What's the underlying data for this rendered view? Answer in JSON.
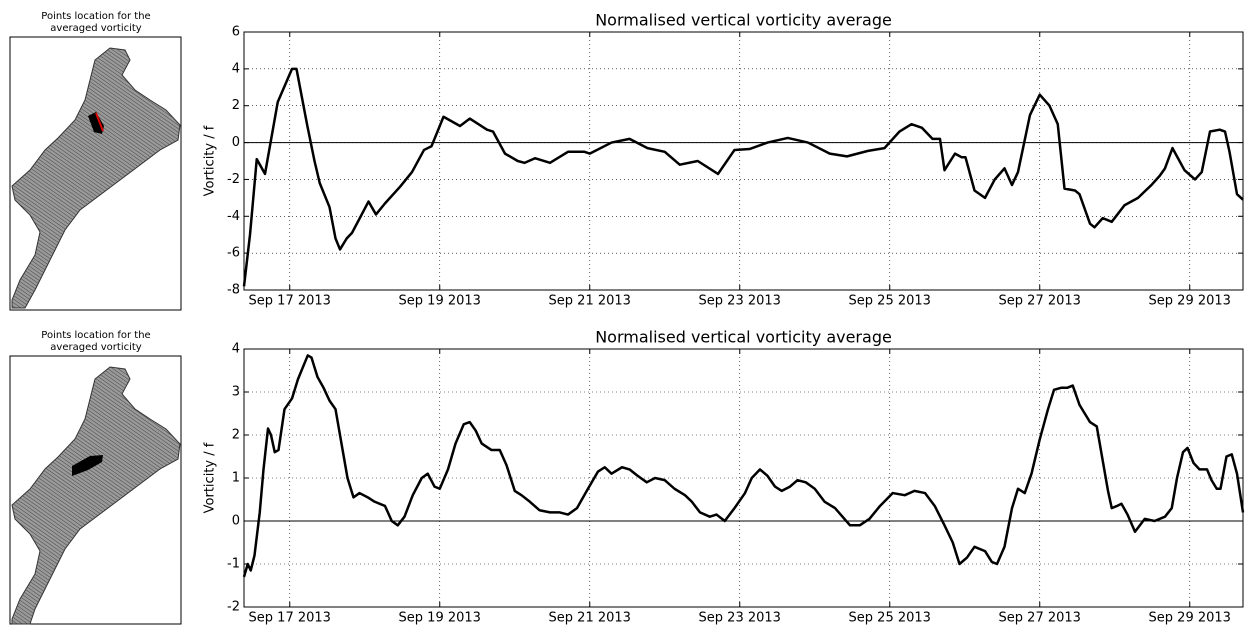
{
  "map_panels": [
    {
      "title": [
        "Points location for the",
        "averaged vorticity"
      ]
    },
    {
      "title": [
        "Points location for the",
        "averaged vorticity"
      ]
    }
  ],
  "chart_data": [
    {
      "type": "line",
      "title": "Normalised vertical vorticity average",
      "y_label": "Vorticity / f",
      "xlim": [
        16.39,
        29.71
      ],
      "ylim": [
        -8,
        6
      ],
      "yticks": [
        -8,
        -6,
        -4,
        -2,
        0,
        2,
        4,
        6
      ],
      "xticks": [
        {
          "value": 17,
          "label": "Sep 17 2013"
        },
        {
          "value": 19,
          "label": "Sep 19 2013"
        },
        {
          "value": 21,
          "label": "Sep 21 2013"
        },
        {
          "value": 23,
          "label": "Sep 23 2013"
        },
        {
          "value": 25,
          "label": "Sep 25 2013"
        },
        {
          "value": 27,
          "label": "Sep 27 2013"
        },
        {
          "value": 29,
          "label": "Sep 29 2013"
        }
      ],
      "grid": true,
      "reference_line": 0,
      "x": [
        16.39,
        16.47,
        16.56,
        16.67,
        16.84,
        17.03,
        17.09,
        17.23,
        17.33,
        17.4,
        17.53,
        17.61,
        17.67,
        17.76,
        17.83,
        18.05,
        18.15,
        18.27,
        18.47,
        18.63,
        18.79,
        18.89,
        19.05,
        19.27,
        19.4,
        19.63,
        19.71,
        19.87,
        20.04,
        20.13,
        20.27,
        20.47,
        20.71,
        20.93,
        21.0,
        21.29,
        21.53,
        21.77,
        22.0,
        22.2,
        22.44,
        22.71,
        22.93,
        23.13,
        23.37,
        23.64,
        23.91,
        24.2,
        24.43,
        24.71,
        24.93,
        25.13,
        25.29,
        25.43,
        25.57,
        25.67,
        25.73,
        25.87,
        25.96,
        26.01,
        26.13,
        26.27,
        26.4,
        26.53,
        26.63,
        26.71,
        26.87,
        27.0,
        27.13,
        27.24,
        27.33,
        27.47,
        27.53,
        27.67,
        27.73,
        27.84,
        27.96,
        28.13,
        28.31,
        28.49,
        28.6,
        28.67,
        28.77,
        28.93,
        29.07,
        29.16,
        29.27,
        29.4,
        29.47,
        29.53,
        29.63,
        29.71
      ],
      "series": [
        {
          "color": "#000000",
          "values": [
            -7.8,
            -5,
            -0.9,
            -1.7,
            2.2,
            4,
            4,
            1,
            -1,
            -2.2,
            -3.5,
            -5.2,
            -5.8,
            -5.2,
            -4.9,
            -3.2,
            -3.9,
            -3.3,
            -2.4,
            -1.6,
            -0.4,
            -0.2,
            1.4,
            0.9,
            1.3,
            0.7,
            0.6,
            -0.6,
            -1,
            -1.1,
            -0.85,
            -1.1,
            -0.5,
            -0.5,
            -0.6,
            0,
            0.2,
            -0.3,
            -0.5,
            -1.2,
            -1,
            -1.7,
            -0.4,
            -0.35,
            0,
            0.25,
            0,
            -0.6,
            -0.75,
            -0.45,
            -0.3,
            0.6,
            1,
            0.8,
            0.2,
            0.2,
            -1.5,
            -0.6,
            -0.8,
            -0.8,
            -2.6,
            -3,
            -2,
            -1.4,
            -2.3,
            -1.6,
            1.5,
            2.6,
            2,
            1,
            -2.5,
            -2.6,
            -2.8,
            -4.4,
            -4.6,
            -4.1,
            -4.3,
            -3.4,
            -3,
            -2.3,
            -1.8,
            -1.4,
            -0.3,
            -1.5,
            -2,
            -1.6,
            0.6,
            0.7,
            0.6,
            -0.5,
            -2.8,
            -3.1
          ]
        }
      ]
    },
    {
      "type": "line",
      "title": "Normalised vertical vorticity average",
      "y_label": "Vorticity / f",
      "xlim": [
        16.39,
        29.71
      ],
      "ylim": [
        -2,
        4
      ],
      "yticks": [
        -2,
        -1,
        0,
        1,
        2,
        3,
        4
      ],
      "xticks": [
        {
          "value": 17,
          "label": "Sep 17 2013"
        },
        {
          "value": 19,
          "label": "Sep 19 2013"
        },
        {
          "value": 21,
          "label": "Sep 21 2013"
        },
        {
          "value": 23,
          "label": "Sep 23 2013"
        },
        {
          "value": 25,
          "label": "Sep 25 2013"
        },
        {
          "value": 27,
          "label": "Sep 27 2013"
        },
        {
          "value": 29,
          "label": "Sep 29 2013"
        }
      ],
      "grid": true,
      "reference_line": 0,
      "x": [
        16.39,
        16.44,
        16.48,
        16.53,
        16.6,
        16.65,
        16.71,
        16.75,
        16.8,
        16.85,
        16.93,
        17.03,
        17.11,
        17.24,
        17.29,
        17.37,
        17.45,
        17.53,
        17.61,
        17.69,
        17.77,
        17.85,
        17.93,
        18.04,
        18.13,
        18.27,
        18.36,
        18.44,
        18.53,
        18.64,
        18.76,
        18.84,
        18.93,
        19.0,
        19.11,
        19.21,
        19.32,
        19.4,
        19.48,
        19.56,
        19.69,
        19.8,
        19.89,
        20.0,
        20.09,
        20.2,
        20.33,
        20.47,
        20.6,
        20.71,
        20.83,
        20.96,
        21.11,
        21.2,
        21.29,
        21.43,
        21.53,
        21.64,
        21.76,
        21.87,
        22.0,
        22.13,
        22.27,
        22.36,
        22.47,
        22.6,
        22.69,
        22.8,
        22.93,
        23.07,
        23.16,
        23.27,
        23.37,
        23.47,
        23.56,
        23.67,
        23.77,
        23.88,
        24.0,
        24.13,
        24.27,
        24.37,
        24.47,
        24.6,
        24.73,
        24.87,
        25.04,
        25.2,
        25.33,
        25.47,
        25.6,
        25.73,
        25.84,
        25.93,
        26.03,
        26.13,
        26.27,
        26.36,
        26.43,
        26.53,
        26.63,
        26.71,
        26.8,
        26.89,
        27.0,
        27.11,
        27.19,
        27.29,
        27.37,
        27.44,
        27.53,
        27.67,
        27.76,
        27.83,
        27.91,
        27.96,
        28.03,
        28.09,
        28.17,
        28.27,
        28.4,
        28.53,
        28.67,
        28.76,
        28.83,
        28.91,
        28.97,
        29.05,
        29.13,
        29.23,
        29.29,
        29.36,
        29.41,
        29.49,
        29.56,
        29.63,
        29.71
      ],
      "series": [
        {
          "color": "#000000",
          "values": [
            -1.3,
            -1.0,
            -1.15,
            -0.8,
            0.2,
            1.2,
            2.15,
            2.0,
            1.6,
            1.65,
            2.6,
            2.85,
            3.3,
            3.85,
            3.8,
            3.35,
            3.1,
            2.8,
            2.6,
            1.8,
            1.0,
            0.55,
            0.65,
            0.55,
            0.45,
            0.35,
            0.0,
            -0.1,
            0.1,
            0.6,
            1.0,
            1.1,
            0.8,
            0.75,
            1.2,
            1.8,
            2.25,
            2.3,
            2.1,
            1.8,
            1.65,
            1.65,
            1.3,
            0.7,
            0.6,
            0.45,
            0.25,
            0.2,
            0.2,
            0.15,
            0.3,
            0.7,
            1.15,
            1.25,
            1.1,
            1.25,
            1.2,
            1.05,
            0.9,
            1.0,
            0.95,
            0.75,
            0.6,
            0.45,
            0.2,
            0.1,
            0.15,
            0.0,
            0.3,
            0.65,
            1.0,
            1.2,
            1.05,
            0.8,
            0.7,
            0.8,
            0.95,
            0.9,
            0.75,
            0.45,
            0.3,
            0.1,
            -0.1,
            -0.1,
            0.05,
            0.35,
            0.65,
            0.6,
            0.7,
            0.65,
            0.35,
            -0.1,
            -0.5,
            -1.0,
            -0.85,
            -0.6,
            -0.7,
            -0.95,
            -1.0,
            -0.6,
            0.3,
            0.75,
            0.65,
            1.1,
            1.9,
            2.6,
            3.05,
            3.1,
            3.1,
            3.15,
            2.7,
            2.3,
            2.2,
            1.5,
            0.7,
            0.3,
            0.35,
            0.4,
            0.15,
            -0.25,
            0.05,
            0.0,
            0.1,
            0.3,
            1.0,
            1.6,
            1.7,
            1.35,
            1.2,
            1.2,
            0.95,
            0.75,
            0.75,
            1.5,
            1.55,
            1.1,
            0.2
          ]
        }
      ]
    }
  ]
}
